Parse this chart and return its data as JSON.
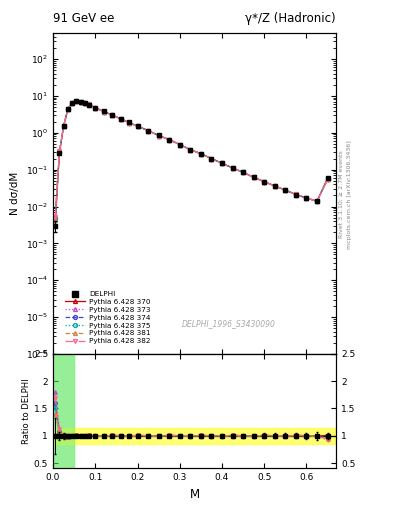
{
  "title_left": "91 GeV ee",
  "title_right": "γ*/Z (Hadronic)",
  "ylabel_main": "N dσ/dM",
  "ylabel_ratio": "Ratio to DELPHI",
  "xlabel": "M",
  "right_label_1": "Rivet 3.1.10; ≥ 2.7M events",
  "right_label_2": "mcplots.cern.ch [arXiv:1306.3436]",
  "watermark": "DELPHI_1996_S3430090",
  "x_data": [
    0.005,
    0.015,
    0.025,
    0.035,
    0.045,
    0.055,
    0.065,
    0.075,
    0.085,
    0.1,
    0.12,
    0.14,
    0.16,
    0.18,
    0.2,
    0.225,
    0.25,
    0.275,
    0.3,
    0.325,
    0.35,
    0.375,
    0.4,
    0.425,
    0.45,
    0.475,
    0.5,
    0.525,
    0.55,
    0.575,
    0.6,
    0.625,
    0.65
  ],
  "y_data": [
    0.003,
    0.28,
    1.5,
    4.5,
    6.5,
    7.2,
    7.0,
    6.5,
    5.8,
    4.8,
    3.8,
    3.0,
    2.4,
    1.9,
    1.5,
    1.15,
    0.85,
    0.65,
    0.48,
    0.35,
    0.27,
    0.2,
    0.15,
    0.11,
    0.085,
    0.062,
    0.047,
    0.036,
    0.028,
    0.021,
    0.017,
    0.014,
    0.058
  ],
  "y_err": [
    0.001,
    0.02,
    0.08,
    0.15,
    0.2,
    0.2,
    0.2,
    0.18,
    0.15,
    0.12,
    0.09,
    0.07,
    0.06,
    0.05,
    0.04,
    0.03,
    0.025,
    0.02,
    0.015,
    0.012,
    0.009,
    0.007,
    0.005,
    0.004,
    0.003,
    0.0025,
    0.002,
    0.0015,
    0.0012,
    0.001,
    0.001,
    0.001,
    0.003
  ],
  "mc_lines": [
    {
      "label": "Pythia 6.428 370",
      "color": "#cc0000",
      "linestyle": "-",
      "marker": "^"
    },
    {
      "label": "Pythia 6.428 373",
      "color": "#cc44cc",
      "linestyle": ":",
      "marker": "^"
    },
    {
      "label": "Pythia 6.428 374",
      "color": "#4444cc",
      "linestyle": "--",
      "marker": "o"
    },
    {
      "label": "Pythia 6.428 375",
      "color": "#00aaaa",
      "linestyle": ":",
      "marker": "o"
    },
    {
      "label": "Pythia 6.428 381",
      "color": "#cc8844",
      "linestyle": "--",
      "marker": "^"
    },
    {
      "label": "Pythia 6.428 382",
      "color": "#ff6688",
      "linestyle": "-.",
      "marker": "v"
    }
  ],
  "xlim": [
    0.0,
    0.67
  ],
  "ylim_main": [
    1e-06,
    500
  ],
  "ylim_ratio": [
    0.4,
    2.5
  ],
  "ratio_yticks": [
    0.5,
    1.0,
    1.5,
    2.0,
    2.5
  ],
  "ratio_ytick_labels": [
    "0.5",
    "1",
    "1.5",
    "2",
    "2.5"
  ],
  "green_band_xlim": [
    0.0,
    0.05
  ],
  "yellow_band_ylim": [
    0.85,
    1.15
  ],
  "background_color": "#ffffff"
}
